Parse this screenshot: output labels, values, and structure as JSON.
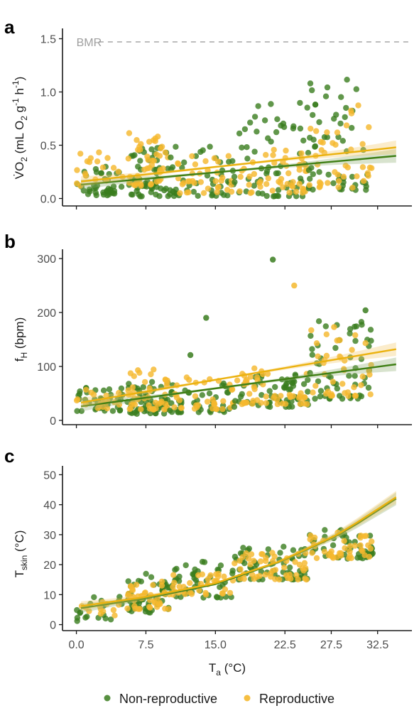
{
  "colors": {
    "non_reproductive": "#3a7d1e",
    "reproductive": "#f5b82e",
    "non_reproductive_line": "#3f7f15",
    "reproductive_line": "#ebb20f",
    "axis": "#1a1a1a",
    "bmr": "#bdbdbd"
  },
  "legend": {
    "items": [
      {
        "label": "Non-reproductive",
        "color_key": "non_reproductive"
      },
      {
        "label": "Reproductive",
        "color_key": "reproductive"
      }
    ],
    "position": "bottom"
  },
  "shared_x_axis": {
    "label_main": "T",
    "label_sub": "a",
    "label_unit": " (°C)",
    "ticks": [
      "0.0",
      "7.5",
      "15.0",
      "22.5",
      "27.5",
      "32.5"
    ]
  },
  "chart_data": [
    {
      "panel": "a",
      "type": "scatter",
      "ylabel": {
        "main": "V̇O",
        "sub1": "2",
        "mid": " (mL O",
        "sub2": "2",
        "rest": " g",
        "sup1": "-1",
        "rest2": " h",
        "sup2": "-1",
        "end": ")"
      },
      "ylim": [
        -0.07,
        1.57
      ],
      "yticks": [
        "0.0",
        "0.5",
        "1.0",
        "1.5"
      ],
      "reference_line": {
        "label": "BMR",
        "y": 1.47,
        "style": "dashed"
      },
      "trend": [
        {
          "series": "Non-reproductive",
          "x": [
            0.5,
            34.5
          ],
          "y": [
            0.13,
            0.4
          ]
        },
        {
          "series": "Reproductive",
          "x": [
            0.5,
            34.5
          ],
          "y": [
            0.16,
            0.48
          ]
        }
      ],
      "clusters": [
        {
          "series": "Non-reproductive",
          "x": [
            0,
            5
          ],
          "y": [
            0.03,
            0.3
          ],
          "n": 40
        },
        {
          "series": "Reproductive",
          "x": [
            0,
            5
          ],
          "y": [
            0.08,
            0.46
          ],
          "n": 18
        },
        {
          "series": "Non-reproductive",
          "x": [
            5.5,
            10
          ],
          "y": [
            0.02,
            0.48
          ],
          "n": 55
        },
        {
          "series": "Reproductive",
          "x": [
            5.5,
            10
          ],
          "y": [
            0.12,
            0.62
          ],
          "n": 45
        },
        {
          "series": "Non-reproductive",
          "x": [
            10,
            17
          ],
          "y": [
            0.02,
            0.5
          ],
          "n": 45
        },
        {
          "series": "Reproductive",
          "x": [
            10,
            17
          ],
          "y": [
            0.05,
            0.42
          ],
          "n": 35
        },
        {
          "series": "Non-reproductive",
          "x": [
            17,
            25
          ],
          "y": [
            0.02,
            0.9
          ],
          "n": 60
        },
        {
          "series": "Reproductive",
          "x": [
            17,
            25
          ],
          "y": [
            0.05,
            0.48
          ],
          "n": 50
        },
        {
          "series": "Non-reproductive",
          "x": [
            25,
            32
          ],
          "y": [
            0.08,
            1.23
          ],
          "n": 55
        },
        {
          "series": "Reproductive",
          "x": [
            25,
            32
          ],
          "y": [
            0.1,
            0.93
          ],
          "n": 40
        }
      ]
    },
    {
      "panel": "b",
      "type": "scatter",
      "ylabel": {
        "main": "f",
        "sub": "H",
        "rest": " (bpm)"
      },
      "ylim": [
        -8,
        312
      ],
      "yticks": [
        "0",
        "100",
        "200",
        "300"
      ],
      "trend": [
        {
          "series": "Non-reproductive",
          "x": [
            0.5,
            34.5
          ],
          "y": [
            26,
            104
          ]
        },
        {
          "series": "Reproductive",
          "x": [
            0.5,
            34.5
          ],
          "y": [
            33,
            132
          ]
        }
      ],
      "highlights": [
        {
          "series": "Non-reproductive",
          "x": 21.2,
          "y": 298
        },
        {
          "series": "Reproductive",
          "x": 23.5,
          "y": 250
        },
        {
          "series": "Non-reproductive",
          "x": 14.0,
          "y": 190
        },
        {
          "series": "Non-reproductive",
          "x": 12.3,
          "y": 121
        },
        {
          "series": "Non-reproductive",
          "x": 31.2,
          "y": 204
        },
        {
          "series": "Reproductive",
          "x": 27.8,
          "y": 173
        }
      ],
      "clusters": [
        {
          "series": "Non-reproductive",
          "x": [
            0,
            5
          ],
          "y": [
            17,
            62
          ],
          "n": 40
        },
        {
          "series": "Reproductive",
          "x": [
            0,
            5
          ],
          "y": [
            22,
            60
          ],
          "n": 18
        },
        {
          "series": "Non-reproductive",
          "x": [
            5.5,
            10
          ],
          "y": [
            12,
            75
          ],
          "n": 55
        },
        {
          "series": "Reproductive",
          "x": [
            5.5,
            10
          ],
          "y": [
            20,
            98
          ],
          "n": 45
        },
        {
          "series": "Non-reproductive",
          "x": [
            10,
            17
          ],
          "y": [
            15,
            70
          ],
          "n": 45
        },
        {
          "series": "Reproductive",
          "x": [
            10,
            17
          ],
          "y": [
            20,
            80
          ],
          "n": 35
        },
        {
          "series": "Non-reproductive",
          "x": [
            17,
            25
          ],
          "y": [
            25,
            95
          ],
          "n": 60
        },
        {
          "series": "Reproductive",
          "x": [
            17,
            25
          ],
          "y": [
            30,
            100
          ],
          "n": 50
        },
        {
          "series": "Non-reproductive",
          "x": [
            25,
            32
          ],
          "y": [
            40,
            185
          ],
          "n": 55
        },
        {
          "series": "Reproductive",
          "x": [
            25,
            32
          ],
          "y": [
            45,
            170
          ],
          "n": 40
        }
      ]
    },
    {
      "panel": "c",
      "type": "scatter",
      "ylabel": {
        "main": "T",
        "sub": "skin",
        "rest": " (°C)"
      },
      "ylim": [
        -2,
        52
      ],
      "yticks": [
        "0",
        "10",
        "20",
        "30",
        "40",
        "50"
      ],
      "trend": [
        {
          "series": "Non-reproductive",
          "x": [
            0.5,
            7,
            15,
            22,
            28,
            30.5,
            34.5
          ],
          "y": [
            5.5,
            8.5,
            13.5,
            21,
            29.5,
            34,
            42
          ]
        },
        {
          "series": "Reproductive",
          "x": [
            0.5,
            7,
            15,
            22,
            28,
            30.5,
            34.5
          ],
          "y": [
            6.2,
            9,
            13.8,
            21.2,
            29.8,
            34.5,
            42.5
          ]
        }
      ],
      "clusters": [
        {
          "series": "Non-reproductive",
          "x": [
            0,
            5
          ],
          "y": [
            1,
            10
          ],
          "n": 18
        },
        {
          "series": "Reproductive",
          "x": [
            0,
            5
          ],
          "y": [
            3,
            8
          ],
          "n": 12
        },
        {
          "series": "Non-reproductive",
          "x": [
            5.5,
            10
          ],
          "y": [
            4,
            17
          ],
          "n": 50
        },
        {
          "series": "Reproductive",
          "x": [
            5.5,
            10
          ],
          "y": [
            5,
            15
          ],
          "n": 40
        },
        {
          "series": "Non-reproductive",
          "x": [
            10,
            17
          ],
          "y": [
            9,
            21
          ],
          "n": 45
        },
        {
          "series": "Reproductive",
          "x": [
            10,
            17
          ],
          "y": [
            10,
            17
          ],
          "n": 35
        },
        {
          "series": "Non-reproductive",
          "x": [
            17,
            25
          ],
          "y": [
            15,
            26
          ],
          "n": 60
        },
        {
          "series": "Reproductive",
          "x": [
            17,
            25
          ],
          "y": [
            15,
            24
          ],
          "n": 50
        },
        {
          "series": "Non-reproductive",
          "x": [
            25,
            32
          ],
          "y": [
            22,
            32
          ],
          "n": 50
        },
        {
          "series": "Reproductive",
          "x": [
            25,
            32
          ],
          "y": [
            22,
            31
          ],
          "n": 40
        }
      ]
    }
  ]
}
